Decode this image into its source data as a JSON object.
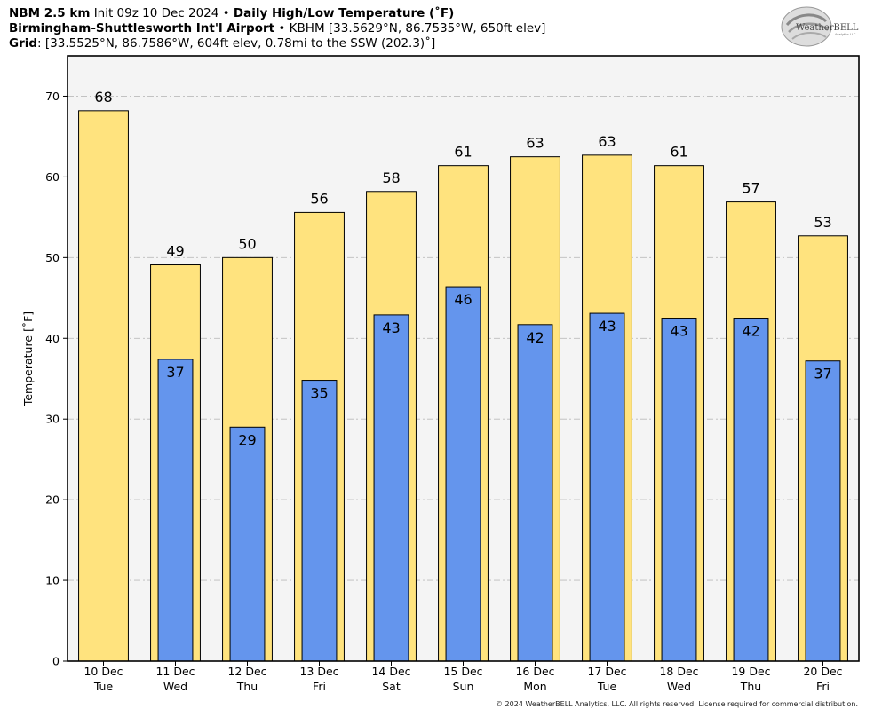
{
  "header": {
    "line1_model": "NBM 2.5 km",
    "line1_init": "Init 09z 10 Dec 2024",
    "line1_bullet": "•",
    "line1_product": "Daily High/Low Temperature (˚F)",
    "line2_station": "Birmingham-Shuttlesworth Int'l Airport",
    "line2_bullet": "•",
    "line2_details": "KBHM [33.5629°N, 86.7535°W, 650ft elev]",
    "line3_label": "Grid",
    "line3_details": ": [33.5525°N, 86.7586°W, 604ft elev, 0.78mi to the SSW (202.3)˚]"
  },
  "logo": {
    "text": "WeatherBELL",
    "subtext": "Analytics LLC"
  },
  "footer": "© 2024 WeatherBELL Analytics, LLC. All rights reserved. License required for commercial distribution.",
  "colors": {
    "high": "#FFE37E",
    "low": "#6495ED",
    "plot_bg": "#F4F4F4",
    "grid": "#BBBBBB"
  },
  "chart_data": {
    "type": "bar",
    "ylabel": "Temperature [˚F]",
    "ylim": [
      0,
      75
    ],
    "yticks": [
      0,
      10,
      20,
      30,
      40,
      50,
      60,
      70
    ],
    "grid": true,
    "categories": [
      {
        "date": "10 Dec",
        "day": "Tue"
      },
      {
        "date": "11 Dec",
        "day": "Wed"
      },
      {
        "date": "12 Dec",
        "day": "Thu"
      },
      {
        "date": "13 Dec",
        "day": "Fri"
      },
      {
        "date": "14 Dec",
        "day": "Sat"
      },
      {
        "date": "15 Dec",
        "day": "Sun"
      },
      {
        "date": "16 Dec",
        "day": "Mon"
      },
      {
        "date": "17 Dec",
        "day": "Tue"
      },
      {
        "date": "18 Dec",
        "day": "Wed"
      },
      {
        "date": "19 Dec",
        "day": "Thu"
      },
      {
        "date": "20 Dec",
        "day": "Fri"
      }
    ],
    "series": [
      {
        "key": "high",
        "values": [
          68.2,
          49.1,
          50.0,
          55.6,
          58.2,
          61.4,
          62.5,
          62.7,
          61.4,
          56.9,
          52.7
        ],
        "labels": [
          "68",
          "49",
          "50",
          "56",
          "58",
          "61",
          "63",
          "63",
          "61",
          "57",
          "53"
        ]
      },
      {
        "key": "low",
        "values": [
          null,
          37.4,
          29.0,
          34.8,
          42.9,
          46.4,
          41.7,
          43.1,
          42.5,
          42.5,
          37.2
        ],
        "labels": [
          "",
          "37",
          "29",
          "35",
          "43",
          "46",
          "42",
          "43",
          "43",
          "42",
          "37"
        ]
      }
    ]
  }
}
